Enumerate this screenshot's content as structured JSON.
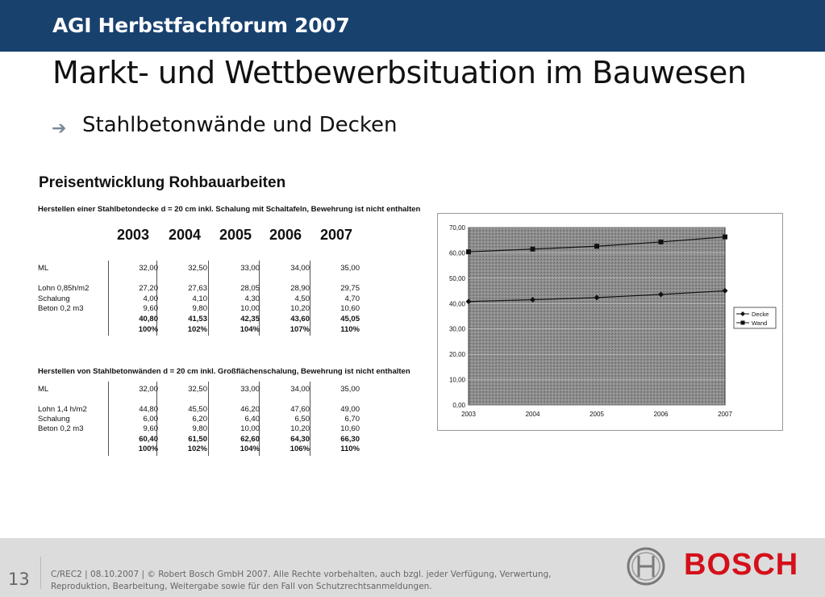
{
  "header": {
    "event_title": "AGI Herbstfachforum 2007"
  },
  "slide": {
    "title": "Markt- und Wettbewerbsituation im Bauwesen",
    "bullet": "Stahlbetonwände und Decken"
  },
  "price_table": {
    "title": "Preisentwicklung Rohbauarbeiten",
    "years": [
      "2003",
      "2004",
      "2005",
      "2006",
      "2007"
    ],
    "decke": {
      "description": "Herstellen einer Stahlbetondecke d = 20 cm inkl. Schalung mit Schaltafeln, Bewehrung ist nicht enthalten",
      "rows": [
        {
          "label": "ML",
          "values": [
            "32,00",
            "32,50",
            "33,00",
            "34,00",
            "35,00"
          ],
          "bold": false
        },
        {
          "label": "Lohn 0,85h/m2",
          "values": [
            "27,20",
            "27,63",
            "28,05",
            "28,90",
            "29,75"
          ],
          "bold": false
        },
        {
          "label": "Schalung",
          "values": [
            "4,00",
            "4,10",
            "4,30",
            "4,50",
            "4,70"
          ],
          "bold": false
        },
        {
          "label": "Beton 0,2 m3",
          "values": [
            "9,60",
            "9,80",
            "10,00",
            "10,20",
            "10,60"
          ],
          "bold": false
        },
        {
          "label": "",
          "values": [
            "40,80",
            "41,53",
            "42,35",
            "43,60",
            "45,05"
          ],
          "bold": true
        },
        {
          "label": "",
          "values": [
            "100%",
            "102%",
            "104%",
            "107%",
            "110%"
          ],
          "bold": true
        }
      ]
    },
    "wand": {
      "description": "Herstellen von Stahlbetonwänden d = 20 cm inkl. Großflächenschalung, Bewehrung ist nicht enthalten",
      "rows": [
        {
          "label": "ML",
          "values": [
            "32,00",
            "32,50",
            "33,00",
            "34,00",
            "35,00"
          ],
          "bold": false
        },
        {
          "label": "Lohn 1,4 h/m2",
          "values": [
            "44,80",
            "45,50",
            "46,20",
            "47,60",
            "49,00"
          ],
          "bold": false
        },
        {
          "label": "Schalung",
          "values": [
            "6,00",
            "6,20",
            "6,40",
            "6,50",
            "6,70"
          ],
          "bold": false
        },
        {
          "label": "Beton 0,2 m3",
          "values": [
            "9,60",
            "9,80",
            "10,00",
            "10,20",
            "10,60"
          ],
          "bold": false
        },
        {
          "label": "",
          "values": [
            "60,40",
            "61,50",
            "62,60",
            "64,30",
            "66,30"
          ],
          "bold": true
        },
        {
          "label": "",
          "values": [
            "100%",
            "102%",
            "104%",
            "106%",
            "110%"
          ],
          "bold": true
        }
      ]
    }
  },
  "chart_data": {
    "type": "line",
    "categories": [
      "2003",
      "2004",
      "2005",
      "2006",
      "2007"
    ],
    "series": [
      {
        "name": "Decke",
        "values": [
          40.8,
          41.53,
          42.35,
          43.6,
          45.05
        ],
        "marker": "diamond"
      },
      {
        "name": "Wand",
        "values": [
          60.4,
          61.5,
          62.6,
          64.3,
          66.3
        ],
        "marker": "square"
      }
    ],
    "ylim": [
      0,
      70
    ],
    "yticks": [
      "0,00",
      "10,00",
      "20,00",
      "30,00",
      "40,00",
      "50,00",
      "60,00",
      "70,00"
    ],
    "grid": true,
    "legend_position": "right",
    "plot_background": "#8a8a8a",
    "line_color": "#111111"
  },
  "footer": {
    "page_number": "13",
    "legal_text": "C/REC2 | 08.10.2007 | © Robert Bosch GmbH 2007. Alle Rechte vorbehalten, auch bzgl. jeder Verfügung, Verwertung, Reproduktion, Bearbeitung, Weitergabe sowie für den Fall von Schutzrechtsanmeldungen.",
    "brand": "BOSCH",
    "brand_color": "#d4101a"
  },
  "colors": {
    "header_bar": "#18416e",
    "footer_bar": "#dcdcdc"
  }
}
